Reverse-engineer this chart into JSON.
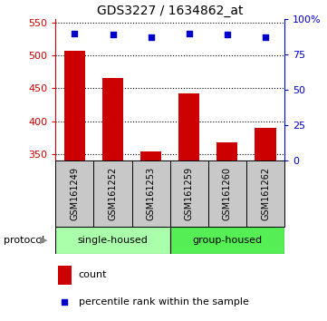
{
  "title": "GDS3227 / 1634862_at",
  "samples": [
    "GSM161249",
    "GSM161252",
    "GSM161253",
    "GSM161259",
    "GSM161260",
    "GSM161262"
  ],
  "counts": [
    507,
    465,
    354,
    442,
    367,
    390
  ],
  "percentiles": [
    90,
    89,
    87,
    90,
    89,
    87
  ],
  "ylim_left": [
    340,
    555
  ],
  "ylim_right": [
    0,
    100
  ],
  "yticks_left": [
    350,
    400,
    450,
    500,
    550
  ],
  "yticks_right": [
    0,
    25,
    50,
    75,
    100
  ],
  "bar_color": "#cc0000",
  "scatter_color": "#0000cc",
  "group1_label": "single-housed",
  "group2_label": "group-housed",
  "group1_color": "#aaffaa",
  "group2_color": "#55ee55",
  "protocol_label": "protocol",
  "legend_count": "count",
  "legend_percentile": "percentile rank within the sample",
  "n_group1": 3,
  "n_group2": 3,
  "left_axis_color": "#cc0000",
  "right_axis_color": "#0000cc",
  "base_value": 340,
  "bar_width": 0.55
}
